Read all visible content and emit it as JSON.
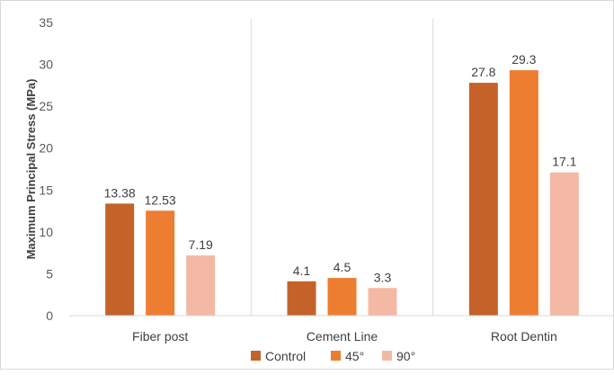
{
  "chart_data": {
    "type": "bar",
    "title": "",
    "xlabel": "",
    "ylabel": "Maximum Principal Stress (MPa)",
    "ylim": [
      0,
      35
    ],
    "yticks": [
      0,
      5,
      10,
      15,
      20,
      25,
      30,
      35
    ],
    "categories": [
      "Fiber post",
      "Cement Line",
      "Root Dentin"
    ],
    "series": [
      {
        "name": "Control",
        "color": "#c4622a",
        "values": [
          13.38,
          4.1,
          27.8
        ],
        "labels": [
          "13.38",
          "4.1",
          "27.8"
        ]
      },
      {
        "name": "45°",
        "color": "#ed7d31",
        "values": [
          12.53,
          4.5,
          29.3
        ],
        "labels": [
          "12.53",
          "4.5",
          "29.3"
        ]
      },
      {
        "name": "90°",
        "color": "#f4b9a5",
        "values": [
          7.19,
          3.3,
          17.1
        ],
        "labels": [
          "7.19",
          "3.3",
          "17.1"
        ]
      }
    ],
    "grid": "vertical category separators",
    "legend_position": "bottom"
  }
}
